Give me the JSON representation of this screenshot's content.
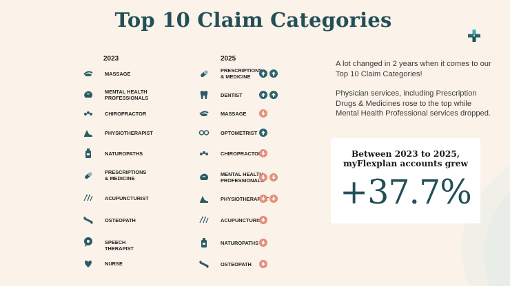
{
  "title": "Top 10 Claim Categories",
  "columns": {
    "left_year": "2023",
    "right_year": "2025"
  },
  "list_2023": [
    {
      "label": "MASSAGE",
      "icon": "massage-icon"
    },
    {
      "label": "MENTAL HEALTH\nPROFESSIONALS",
      "icon": "brain-icon"
    },
    {
      "label": "CHIROPRACTOR",
      "icon": "spine-icon"
    },
    {
      "label": "PHYSIOTHERAPIST",
      "icon": "physio-icon"
    },
    {
      "label": "NATUROPATHS",
      "icon": "bottle-icon"
    },
    {
      "label": "PRESCRIPTIONS\n& MEDICINE",
      "icon": "pill-icon"
    },
    {
      "label": "ACUPUNCTURIST",
      "icon": "needles-icon"
    },
    {
      "label": "OSTEOPATH",
      "icon": "bones-icon"
    },
    {
      "label": "SPEECH THERAPIST",
      "icon": "speech-bubble-icon"
    },
    {
      "label": "NURSE",
      "icon": "heart-hand-icon"
    }
  ],
  "list_2025": [
    {
      "label": "PRESCRIPTIONS\n& MEDICINE",
      "icon": "pill-icon",
      "trend": [
        "up",
        "up"
      ]
    },
    {
      "label": "DENTIST",
      "icon": "tooth-icon",
      "trend": [
        "up",
        "up"
      ]
    },
    {
      "label": "MASSAGE",
      "icon": "massage-icon",
      "trend": [
        "down"
      ]
    },
    {
      "label": "OPTOMETRIST",
      "icon": "glasses-icon",
      "trend": [
        "up"
      ]
    },
    {
      "label": "CHIROPRACTOR",
      "icon": "spine-icon",
      "trend": [
        "down"
      ]
    },
    {
      "label": "MENTAL HEALTH\nPROFESSIONALS",
      "icon": "brain-icon",
      "trend": [
        "down",
        "down"
      ]
    },
    {
      "label": "PHYSIOTHERAPIST",
      "icon": "physio-icon",
      "trend": [
        "down",
        "down"
      ]
    },
    {
      "label": "ACUPUNCTURIST",
      "icon": "needles-icon",
      "trend": [
        "down"
      ]
    },
    {
      "label": "NATUROPATHS",
      "icon": "bottle-icon",
      "trend": [
        "down"
      ]
    },
    {
      "label": "OSTEOPATH",
      "icon": "bones-icon",
      "trend": [
        "down"
      ]
    }
  ],
  "description": {
    "p1": "A lot changed in 2 years when it comes to our Top 10 Claim Categories!",
    "p2": "Physician services, including Prescription Drugs & Medicines rose to the top while Mental Health Professional services dropped."
  },
  "stat_card": {
    "line1": "Between 2023 to 2025,",
    "line2": "myFlexplan accounts grew",
    "value": "+37.7%"
  },
  "colors": {
    "accent": "#234f57",
    "up": "#2b6470",
    "down": "#e3907c",
    "background": "#fbf3e9"
  }
}
